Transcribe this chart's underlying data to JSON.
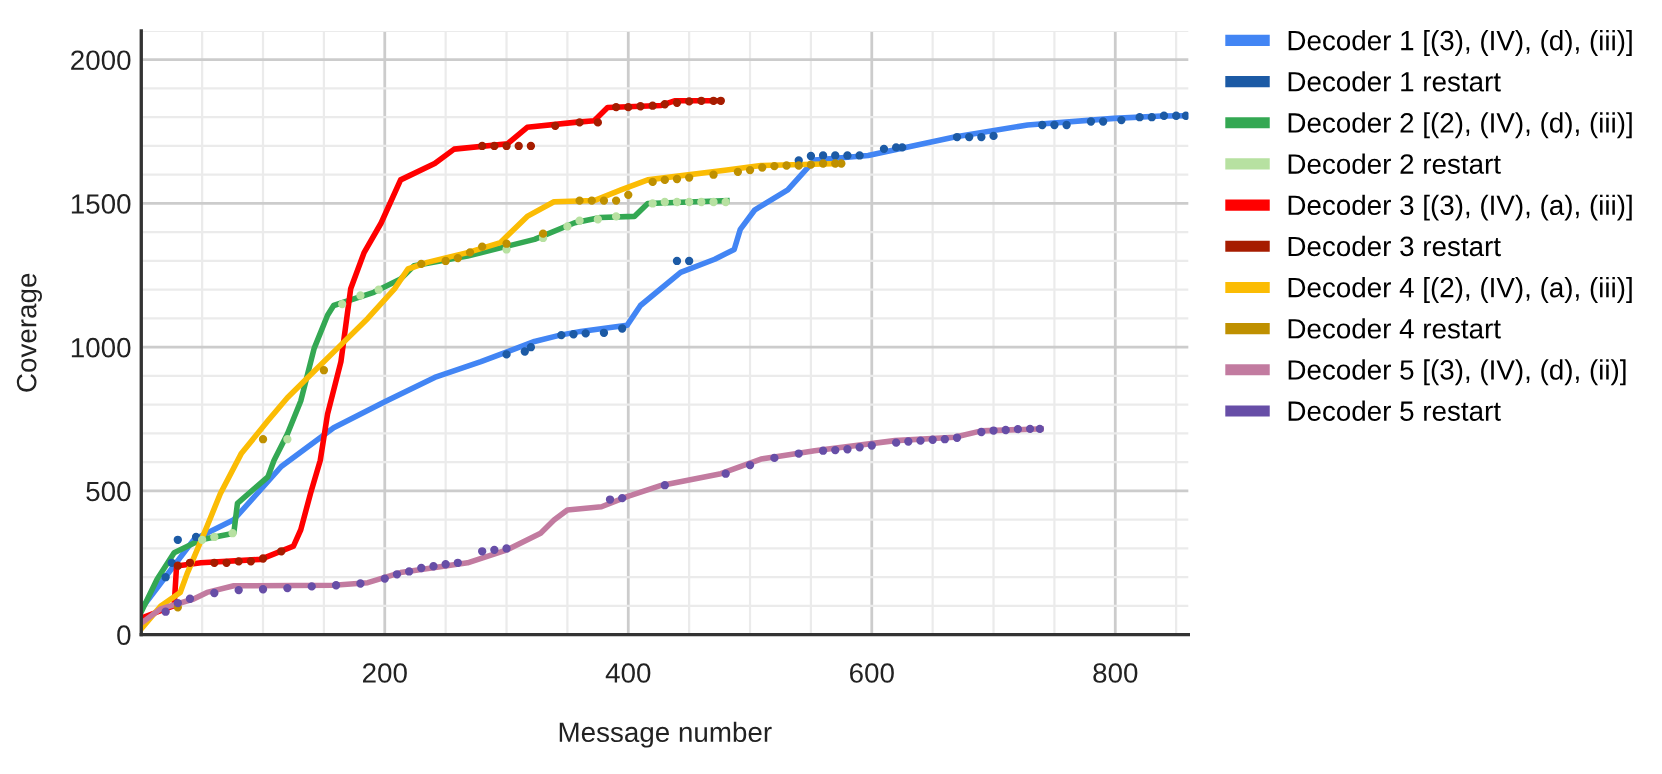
{
  "chart_data": {
    "type": "line",
    "xlabel": "Message number",
    "ylabel": "Coverage",
    "xlim": [
      0,
      860
    ],
    "ylim": [
      0,
      2100
    ],
    "xticks": [
      200,
      400,
      600,
      800
    ],
    "yticks": [
      0,
      500,
      1000,
      1500,
      2000
    ],
    "grid": true,
    "legend": "right",
    "series": [
      {
        "name": "Decoder 1 [(3), (IV), (d), (iii)]",
        "color": "#4285f4",
        "x": [
          0,
          43,
          76,
          115,
          158,
          200,
          241,
          279,
          323,
          344,
          361,
          399,
          410,
          443,
          471,
          487,
          492,
          504,
          531,
          553,
          597,
          668,
          728,
          799,
          838,
          859
        ],
        "values": [
          90,
          330,
          400,
          585,
          720,
          810,
          895,
          950,
          1020,
          1042,
          1055,
          1076,
          1145,
          1260,
          1306,
          1340,
          1410,
          1478,
          1547,
          1651,
          1667,
          1731,
          1773,
          1796,
          1804,
          1805
        ]
      },
      {
        "name": "Decoder 1 restart",
        "color": "#1c5aa5",
        "type": "scatter",
        "x": [
          20,
          25,
          30,
          45,
          300,
          315,
          320,
          345,
          355,
          365,
          380,
          395,
          440,
          450,
          540,
          550,
          560,
          570,
          580,
          590,
          610,
          620,
          625,
          670,
          680,
          690,
          700,
          740,
          750,
          760,
          780,
          790,
          805,
          820,
          830,
          840,
          850,
          858
        ],
        "values": [
          200,
          250,
          330,
          340,
          975,
          985,
          1000,
          1042,
          1045,
          1048,
          1050,
          1065,
          1300,
          1300,
          1650,
          1665,
          1667,
          1667,
          1667,
          1667,
          1690,
          1695,
          1695,
          1731,
          1731,
          1731,
          1735,
          1773,
          1773,
          1773,
          1785,
          1785,
          1790,
          1800,
          1800,
          1805,
          1805,
          1805
        ]
      },
      {
        "name": "Decoder 2 [(2), (IV), (d), (iii)]",
        "color": "#34a853",
        "x": [
          0,
          13,
          27,
          49,
          76,
          79,
          104,
          109,
          120,
          131,
          142,
          153,
          158,
          191,
          213,
          224,
          268,
          323,
          356,
          377,
          405,
          416,
          481
        ],
        "values": [
          80,
          193,
          285,
          330,
          353,
          457,
          549,
          606,
          698,
          813,
          996,
          1111,
          1145,
          1191,
          1237,
          1283,
          1317,
          1375,
          1433,
          1451,
          1455,
          1500,
          1510
        ]
      },
      {
        "name": "Decoder 2 restart",
        "color": "#b7e1a1",
        "type": "scatter",
        "x": [
          50,
          60,
          75,
          120,
          165,
          180,
          195,
          230,
          250,
          270,
          300,
          330,
          350,
          360,
          375,
          390,
          420,
          430,
          440,
          450,
          460,
          470,
          480
        ],
        "values": [
          330,
          340,
          353,
          680,
          1150,
          1180,
          1200,
          null,
          null,
          null,
          1340,
          1380,
          1420,
          1440,
          1445,
          1455,
          1500,
          1505,
          1505,
          1505,
          1505,
          1505,
          1505
        ]
      },
      {
        "name": "Decoder 3 [(3), (IV), (a), (iii)]",
        "color": "#ff0000",
        "x": [
          0,
          27,
          29,
          49,
          98,
          125,
          131,
          139,
          147,
          153,
          164,
          172,
          183,
          197,
          213,
          241,
          257,
          301,
          317,
          356,
          372,
          383,
          427,
          438,
          476
        ],
        "values": [
          58,
          101,
          239,
          250,
          262,
          308,
          365,
          491,
          606,
          767,
          950,
          1203,
          1329,
          1432,
          1582,
          1639,
          1689,
          1708,
          1765,
          1782,
          1788,
          1834,
          1841,
          1857,
          1857
        ]
      },
      {
        "name": "Decoder 3 restart",
        "color": "#a61c00",
        "type": "scatter",
        "x": [
          30,
          40,
          60,
          70,
          80,
          90,
          100,
          115,
          280,
          290,
          300,
          310,
          320,
          340,
          360,
          375,
          390,
          400,
          410,
          420,
          430,
          440,
          450,
          460,
          470,
          476
        ],
        "values": [
          240,
          250,
          250,
          250,
          255,
          255,
          265,
          290,
          1700,
          1700,
          1700,
          1700,
          1700,
          1770,
          1782,
          1782,
          1835,
          1835,
          1838,
          1840,
          1845,
          1850,
          1855,
          1857,
          1857,
          1857
        ]
      },
      {
        "name": "Decoder 4 [(2), (IV), (a), (iii)]",
        "color": "#fbbc04",
        "x": [
          0,
          16,
          32,
          38,
          54,
          65,
          82,
          104,
          120,
          142,
          164,
          186,
          208,
          219,
          235,
          268,
          295,
          317,
          339,
          372,
          394,
          416,
          481,
          509,
          574
        ],
        "values": [
          20,
          100,
          147,
          216,
          377,
          491,
          629,
          744,
          824,
          916,
          1008,
          1100,
          1203,
          1272,
          1295,
          1329,
          1364,
          1455,
          1506,
          1510,
          1547,
          1582,
          1616,
          1632,
          1639
        ]
      },
      {
        "name": "Decoder 4 restart",
        "color": "#bf9000",
        "type": "scatter",
        "x": [
          30,
          100,
          150,
          230,
          250,
          260,
          270,
          280,
          300,
          330,
          360,
          370,
          380,
          390,
          400,
          420,
          430,
          440,
          450,
          470,
          490,
          500,
          510,
          520,
          530,
          540,
          550,
          560,
          570,
          575
        ],
        "values": [
          95,
          680,
          920,
          1290,
          1300,
          1310,
          1330,
          1350,
          1360,
          1395,
          1510,
          1510,
          1510,
          1510,
          1530,
          1575,
          1582,
          1585,
          1590,
          1600,
          1610,
          1616,
          1625,
          1630,
          1632,
          1632,
          1635,
          1639,
          1639,
          1639
        ]
      },
      {
        "name": "Decoder 5 [(3), (IV), (d), (ii)]",
        "color": "#c27ba0",
        "x": [
          0,
          16,
          43,
          54,
          76,
          158,
          186,
          213,
          268,
          301,
          328,
          339,
          350,
          378,
          399,
          427,
          476,
          509,
          520,
          553,
          619,
          668,
          690,
          739
        ],
        "values": [
          40,
          90,
          124,
          147,
          170,
          172,
          181,
          216,
          250,
          296,
          353,
          399,
          434,
          445,
          480,
          519,
          560,
          611,
          618,
          640,
          675,
          687,
          709,
          716
        ]
      },
      {
        "name": "Decoder 5 restart",
        "color": "#674ea7",
        "type": "scatter",
        "x": [
          20,
          30,
          40,
          60,
          80,
          100,
          120,
          140,
          160,
          180,
          200,
          210,
          220,
          230,
          240,
          250,
          260,
          280,
          290,
          300,
          385,
          395,
          430,
          480,
          500,
          520,
          540,
          560,
          570,
          580,
          590,
          600,
          620,
          630,
          640,
          650,
          660,
          670,
          690,
          700,
          710,
          720,
          730,
          738
        ],
        "values": [
          80,
          110,
          125,
          145,
          155,
          158,
          162,
          168,
          172,
          178,
          195,
          210,
          220,
          232,
          238,
          245,
          250,
          290,
          295,
          300,
          470,
          475,
          520,
          560,
          590,
          615,
          630,
          640,
          642,
          645,
          652,
          658,
          668,
          672,
          675,
          678,
          680,
          685,
          705,
          710,
          712,
          715,
          716,
          716
        ]
      }
    ]
  }
}
